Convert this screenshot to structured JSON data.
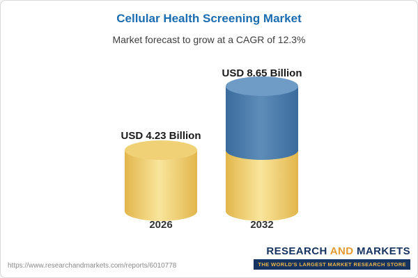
{
  "header": {
    "title": "Cellular Health Screening Market",
    "subtitle": "Market forecast to grow at a CAGR of 12.3%"
  },
  "chart_data": {
    "type": "bar",
    "categories": [
      "2026",
      "2032"
    ],
    "values": [
      4.23,
      8.65
    ],
    "value_labels": [
      "USD 4.23 Billion",
      "USD 8.65 Billion"
    ],
    "unit": "USD Billion",
    "title": "Cellular Health Screening Market",
    "subtitle": "Market forecast to grow at a CAGR of 12.3%",
    "xlabel": "",
    "ylabel": "",
    "ylim": [
      0,
      8.65
    ],
    "grid": false,
    "legend": "none",
    "series": [
      {
        "name": "base-value",
        "values": [
          4.23,
          4.23
        ],
        "color": "#f0cc66"
      },
      {
        "name": "growth",
        "values": [
          0,
          4.42
        ],
        "color": "#4a7dab"
      }
    ],
    "bar_style": "3d-cylinder"
  },
  "footer": {
    "url": "https://www.researchandmarkets.com/reports/6010778",
    "logo": {
      "word1": "RESEARCH",
      "word2": "AND",
      "word3": "MARKETS",
      "tagline": "THE WORLD'S LARGEST MARKET RESEARCH STORE"
    }
  },
  "colors": {
    "title_blue": "#1b6cb0",
    "bar_yellow": "#f0cc66",
    "bar_blue": "#4a7dab",
    "logo_navy": "#15335e",
    "logo_gold": "#e59a2f"
  }
}
